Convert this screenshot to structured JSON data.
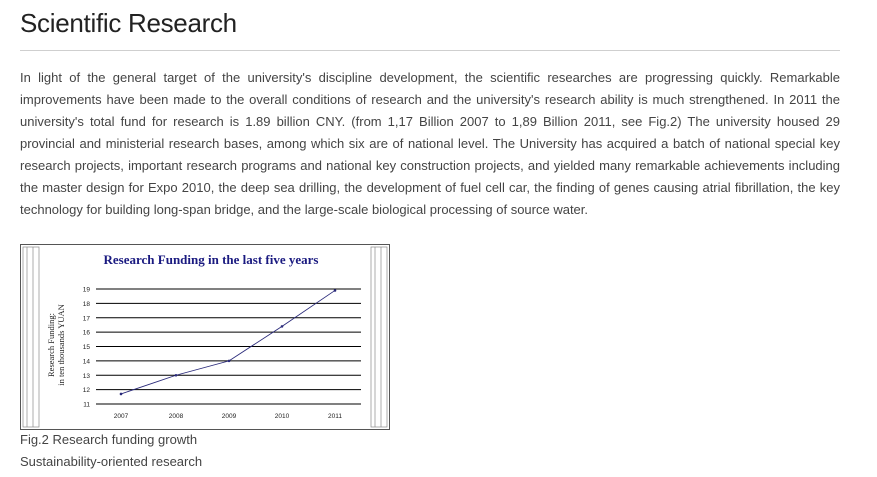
{
  "page": {
    "title": "Scientific Research",
    "body": "In light of the general target of the university's discipline development, the scientific researches are progressing quickly. Remarkable improvements have been made to the overall conditions of research and the university's research ability is much strengthened. In 2011 the university's total fund for research is 1.89 billion CNY. (from 1,17 Billion 2007 to 1,89 Billion 2011, see Fig.2) The university housed 29 provincial and ministerial research bases, among which six are of national level. The University has acquired a batch of national special key research projects, important research programs and national key construction projects, and yielded many remarkable achievements including the master design for Expo 2010, the deep sea drilling, the development of fuel cell car, the finding of genes causing atrial fibrillation, the key technology for building long-span bridge, and the large-scale biological processing of source water.",
    "figure_caption": "Fig.2 Research funding growth",
    "subheading": "Sustainability-oriented research"
  },
  "chart_data": {
    "type": "line",
    "title": "Research Funding in the last five years",
    "ylabel_line1": "Research Funding:",
    "ylabel_line2": "in ten thousands YUAN",
    "x": [
      "2007",
      "2008",
      "2009",
      "2010",
      "2011"
    ],
    "series": [
      {
        "values": [
          11.7,
          13.0,
          14.0,
          16.4,
          18.9
        ]
      }
    ],
    "ylim": [
      11,
      19
    ],
    "yticks": [
      11,
      12,
      13,
      14,
      15,
      16,
      17,
      18,
      19
    ],
    "grid": true,
    "title_color": "#1a1a80",
    "line_color": "#2a2a7a"
  }
}
